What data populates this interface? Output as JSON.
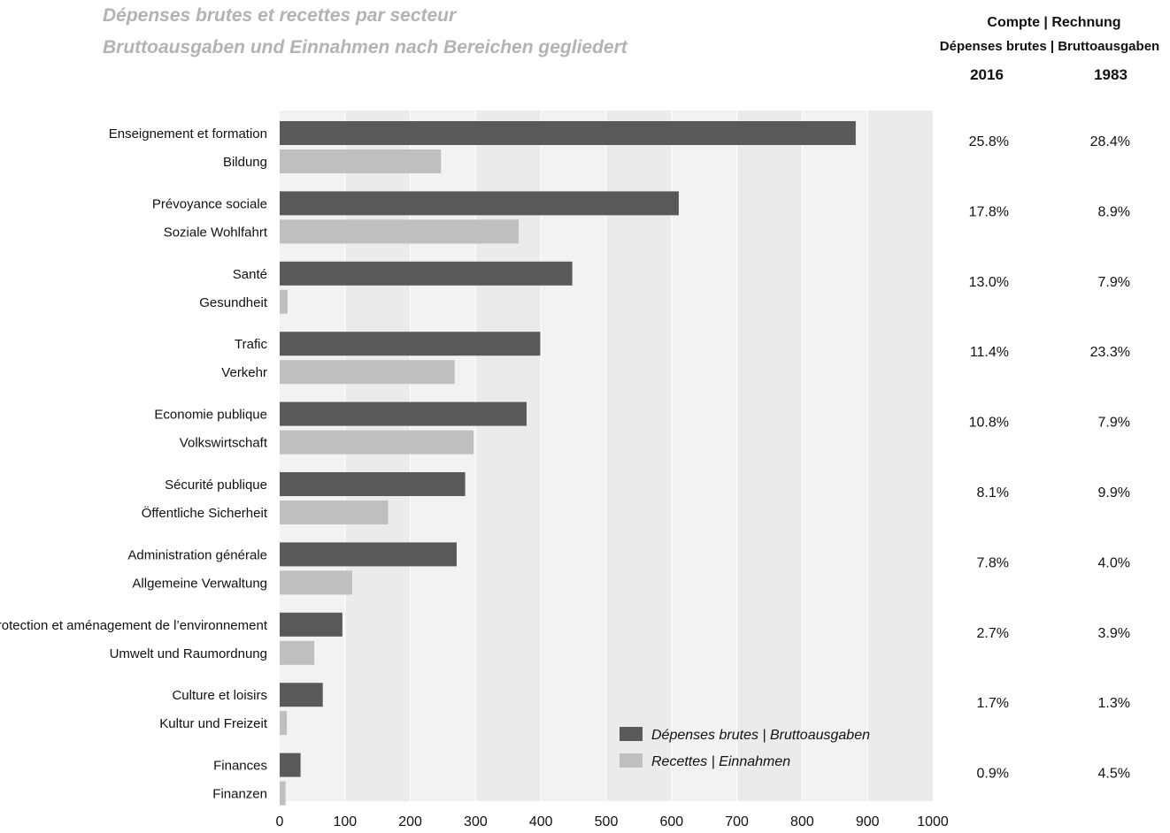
{
  "header": {
    "title_line1": "Dépenses brutes et recettes par secteur",
    "title_line2": "Bruttoausgaben und Einnahmen nach Bereichen gegliedert",
    "table_title": "Compte | Rechnung",
    "table_subtitle": "Dépenses brutes | Bruttoausgaben",
    "year1": "2016",
    "year2": "1983"
  },
  "colors": {
    "expenses": "#595959",
    "revenue": "#bfbfbf",
    "plot_bg_light": "#f2f2f2",
    "plot_bg_dark": "#ebebeb",
    "gridline": "#ffffff"
  },
  "chart_data": {
    "type": "bar",
    "orientation": "horizontal",
    "categories": [
      {
        "fr": "Enseignement et formation",
        "de": "Bildung"
      },
      {
        "fr": "Prévoyance sociale",
        "de": "Soziale Wohlfahrt"
      },
      {
        "fr": "Santé",
        "de": "Gesundheit"
      },
      {
        "fr": "Trafic",
        "de": "Verkehr"
      },
      {
        "fr": "Economie publique",
        "de": "Volkswirtschaft"
      },
      {
        "fr": "Sécurité publique",
        "de": "Öffentliche Sicherheit"
      },
      {
        "fr": "Administration générale",
        "de": "Allgemeine Verwaltung"
      },
      {
        "fr": "Protection et aménagement de l’environnement",
        "de": "Umwelt und Raumordnung"
      },
      {
        "fr": "Culture et loisirs",
        "de": "Kultur und Freizeit"
      },
      {
        "fr": "Finances",
        "de": "Finanzen"
      }
    ],
    "series": [
      {
        "name": "Dépenses brutes |  Bruttoausgaben",
        "values": [
          882,
          611,
          448,
          399,
          378,
          284,
          271,
          96,
          66,
          32
        ]
      },
      {
        "name": "Recettes | Einnahmen",
        "values": [
          247,
          366,
          12,
          268,
          297,
          166,
          111,
          53,
          11,
          9
        ]
      }
    ],
    "share_2016": [
      "25.8%",
      "17.8%",
      "13.0%",
      "11.4%",
      "10.8%",
      "8.1%",
      "7.8%",
      "2.7%",
      "1.7%",
      "0.9%"
    ],
    "share_1983": [
      "28.4%",
      "8.9%",
      "7.9%",
      "23.3%",
      "7.9%",
      "9.9%",
      "4.0%",
      "3.9%",
      "1.3%",
      "4.5%"
    ],
    "x_ticks": [
      "0",
      "100",
      "200",
      "300",
      "400",
      "500",
      "600",
      "700",
      "800",
      "900",
      "1000"
    ],
    "xlim": [
      0,
      1000
    ],
    "grid": true,
    "legend_position": "bottom-right"
  }
}
